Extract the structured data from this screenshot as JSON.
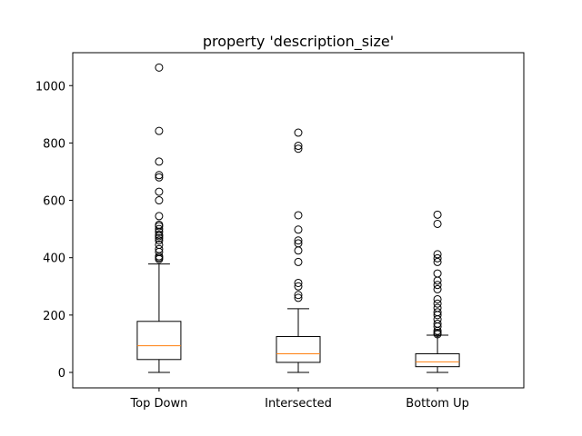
{
  "chart_data": {
    "type": "box",
    "title": "property 'description_size'",
    "xlabel": "",
    "ylabel": "",
    "ylim": [
      -50,
      1115
    ],
    "yticks": [
      0,
      200,
      400,
      600,
      800,
      1000
    ],
    "grid": false,
    "categories": [
      "Top Down",
      "Intersected",
      "Bottom Up"
    ],
    "boxes": [
      {
        "category": "Top Down",
        "whisker_low": 0,
        "q1": 45,
        "median": 93,
        "q3": 178,
        "whisker_high": 378,
        "outliers": [
          395,
          400,
          405,
          420,
          430,
          445,
          460,
          468,
          475,
          480,
          490,
          500,
          510,
          515,
          545,
          600,
          630,
          680,
          688,
          735,
          842,
          1063
        ]
      },
      {
        "category": "Intersected",
        "whisker_low": 0,
        "q1": 35,
        "median": 65,
        "q3": 125,
        "whisker_high": 222,
        "outliers": [
          260,
          270,
          300,
          312,
          385,
          425,
          450,
          460,
          498,
          548,
          780,
          790,
          836
        ]
      },
      {
        "category": "Bottom Up",
        "whisker_low": 0,
        "q1": 20,
        "median": 37,
        "q3": 65,
        "whisker_high": 130,
        "outliers": [
          133,
          138,
          145,
          160,
          170,
          185,
          200,
          210,
          225,
          240,
          255,
          290,
          305,
          320,
          345,
          385,
          398,
          412,
          518,
          550
        ]
      }
    ],
    "colors": {
      "box": "#000000",
      "median": "#ff7f0e",
      "outlier": "#000000"
    }
  }
}
